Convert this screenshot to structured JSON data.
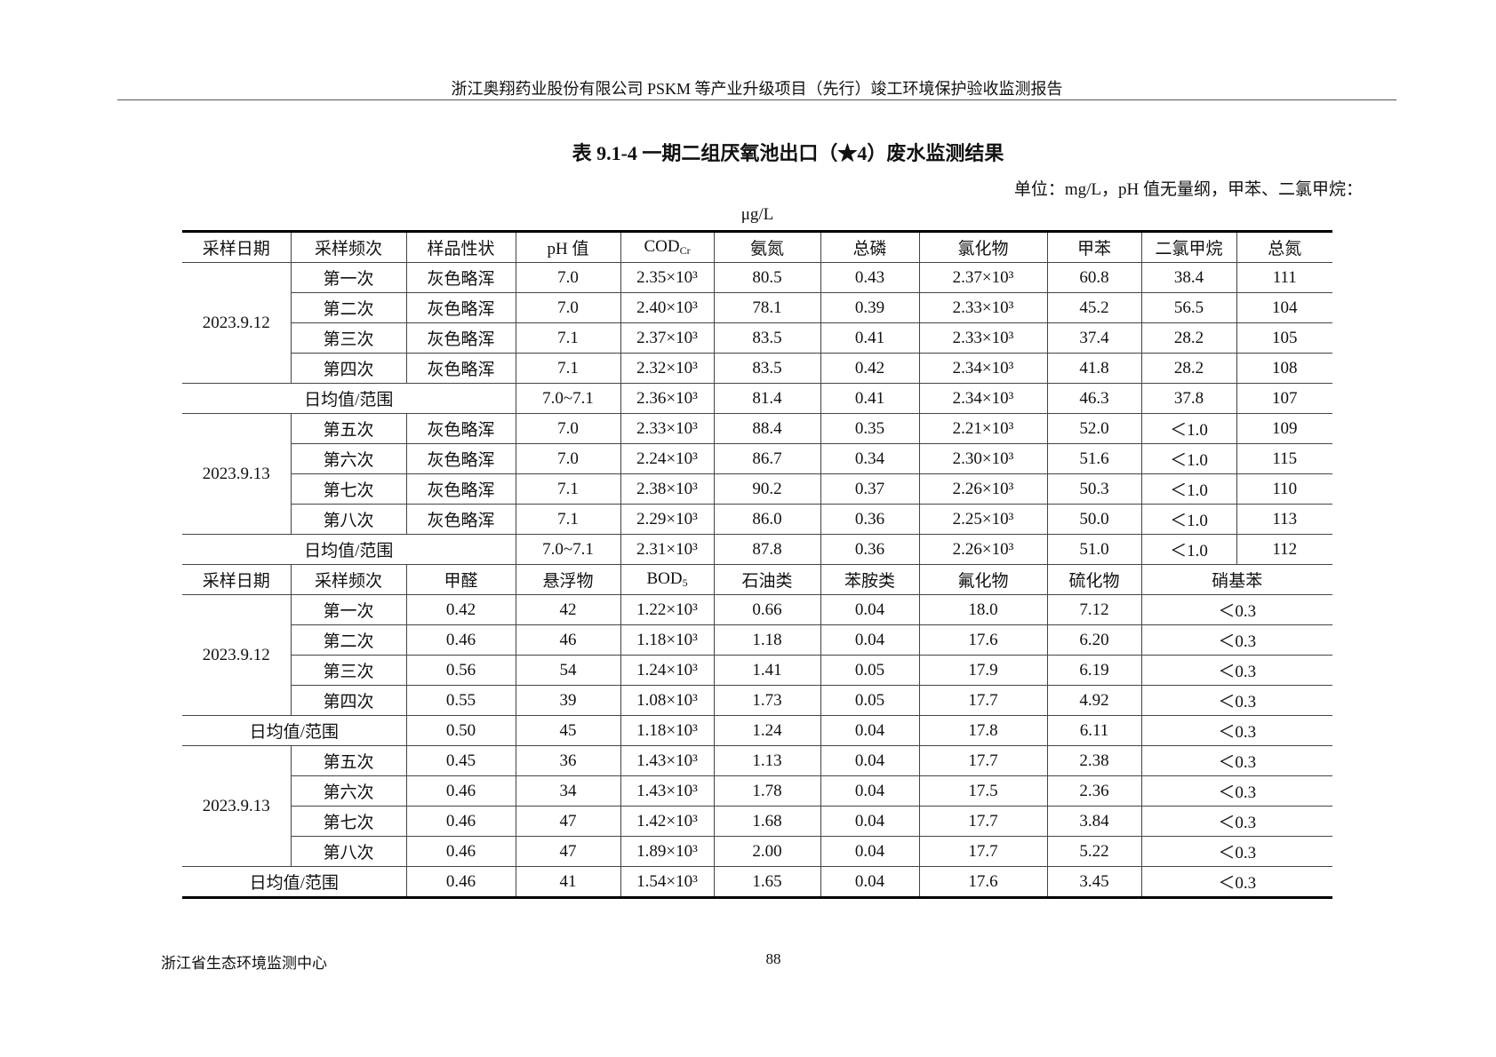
{
  "page_header": "浙江奥翔药业股份有限公司 PSKM 等产业升级项目（先行）竣工环境保护验收监测报告",
  "title": "表 9.1-4  一期二组厌氧池出口（★4）废水监测结果",
  "units_line1": "单位：mg/L，pH 值无量纲，甲苯、二氯甲烷：",
  "units_line2": "μg/L",
  "avg_label": "日均值/范围",
  "part1": {
    "headers": [
      {
        "t": "采样日期"
      },
      {
        "t": "采样频次"
      },
      {
        "t": "样品性状"
      },
      {
        "t": "pH 值"
      },
      {
        "t": "COD",
        "sub": "Cr"
      },
      {
        "t": "氨氮"
      },
      {
        "t": "总磷"
      },
      {
        "t": "氯化物"
      },
      {
        "t": "甲苯"
      },
      {
        "t": "二氯甲烷"
      },
      {
        "t": "总氮"
      }
    ],
    "groups": [
      {
        "date": "2023.9.12",
        "rows": [
          [
            "第一次",
            "灰色略浑",
            "7.0",
            "2.35×10³",
            "80.5",
            "0.43",
            "2.37×10³",
            "60.8",
            "38.4",
            "111"
          ],
          [
            "第二次",
            "灰色略浑",
            "7.0",
            "2.40×10³",
            "78.1",
            "0.39",
            "2.33×10³",
            "45.2",
            "56.5",
            "104"
          ],
          [
            "第三次",
            "灰色略浑",
            "7.1",
            "2.37×10³",
            "83.5",
            "0.41",
            "2.33×10³",
            "37.4",
            "28.2",
            "105"
          ],
          [
            "第四次",
            "灰色略浑",
            "7.1",
            "2.32×10³",
            "83.5",
            "0.42",
            "2.34×10³",
            "41.8",
            "28.2",
            "108"
          ]
        ],
        "avg": [
          "7.0~7.1",
          "2.36×10³",
          "81.4",
          "0.41",
          "2.34×10³",
          "46.3",
          "37.8",
          "107"
        ]
      },
      {
        "date": "2023.9.13",
        "rows": [
          [
            "第五次",
            "灰色略浑",
            "7.0",
            "2.33×10³",
            "88.4",
            "0.35",
            "2.21×10³",
            "52.0",
            "＜1.0",
            "109"
          ],
          [
            "第六次",
            "灰色略浑",
            "7.0",
            "2.24×10³",
            "86.7",
            "0.34",
            "2.30×10³",
            "51.6",
            "＜1.0",
            "115"
          ],
          [
            "第七次",
            "灰色略浑",
            "7.1",
            "2.38×10³",
            "90.2",
            "0.37",
            "2.26×10³",
            "50.3",
            "＜1.0",
            "110"
          ],
          [
            "第八次",
            "灰色略浑",
            "7.1",
            "2.29×10³",
            "86.0",
            "0.36",
            "2.25×10³",
            "50.0",
            "＜1.0",
            "113"
          ]
        ],
        "avg": [
          "7.0~7.1",
          "2.31×10³",
          "87.8",
          "0.36",
          "2.26×10³",
          "51.0",
          "＜1.0",
          "112"
        ]
      }
    ]
  },
  "part2": {
    "headers": [
      {
        "t": "采样日期"
      },
      {
        "t": "采样频次"
      },
      {
        "t": "甲醛"
      },
      {
        "t": "悬浮物"
      },
      {
        "t": "BOD",
        "sub": "5"
      },
      {
        "t": "石油类"
      },
      {
        "t": "苯胺类"
      },
      {
        "t": "氟化物"
      },
      {
        "t": "硫化物"
      },
      {
        "t": "硝基苯"
      }
    ],
    "groups": [
      {
        "date": "2023.9.12",
        "rows": [
          [
            "第一次",
            "0.42",
            "42",
            "1.22×10³",
            "0.66",
            "0.04",
            "18.0",
            "7.12",
            "＜0.3"
          ],
          [
            "第二次",
            "0.46",
            "46",
            "1.18×10³",
            "1.18",
            "0.04",
            "17.6",
            "6.20",
            "＜0.3"
          ],
          [
            "第三次",
            "0.56",
            "54",
            "1.24×10³",
            "1.41",
            "0.05",
            "17.9",
            "6.19",
            "＜0.3"
          ],
          [
            "第四次",
            "0.55",
            "39",
            "1.08×10³",
            "1.73",
            "0.05",
            "17.7",
            "4.92",
            "＜0.3"
          ]
        ],
        "avg": [
          "0.50",
          "45",
          "1.18×10³",
          "1.24",
          "0.04",
          "17.8",
          "6.11",
          "＜0.3"
        ]
      },
      {
        "date": "2023.9.13",
        "rows": [
          [
            "第五次",
            "0.45",
            "36",
            "1.43×10³",
            "1.13",
            "0.04",
            "17.7",
            "2.38",
            "＜0.3"
          ],
          [
            "第六次",
            "0.46",
            "34",
            "1.43×10³",
            "1.78",
            "0.04",
            "17.5",
            "2.36",
            "＜0.3"
          ],
          [
            "第七次",
            "0.46",
            "47",
            "1.42×10³",
            "1.68",
            "0.04",
            "17.7",
            "3.84",
            "＜0.3"
          ],
          [
            "第八次",
            "0.46",
            "47",
            "1.89×10³",
            "2.00",
            "0.04",
            "17.7",
            "5.22",
            "＜0.3"
          ]
        ],
        "avg": [
          "0.46",
          "41",
          "1.54×10³",
          "1.65",
          "0.04",
          "17.6",
          "3.45",
          "＜0.3"
        ]
      }
    ]
  },
  "footer_org": "浙江省生态环境监测中心",
  "page_number": "88"
}
